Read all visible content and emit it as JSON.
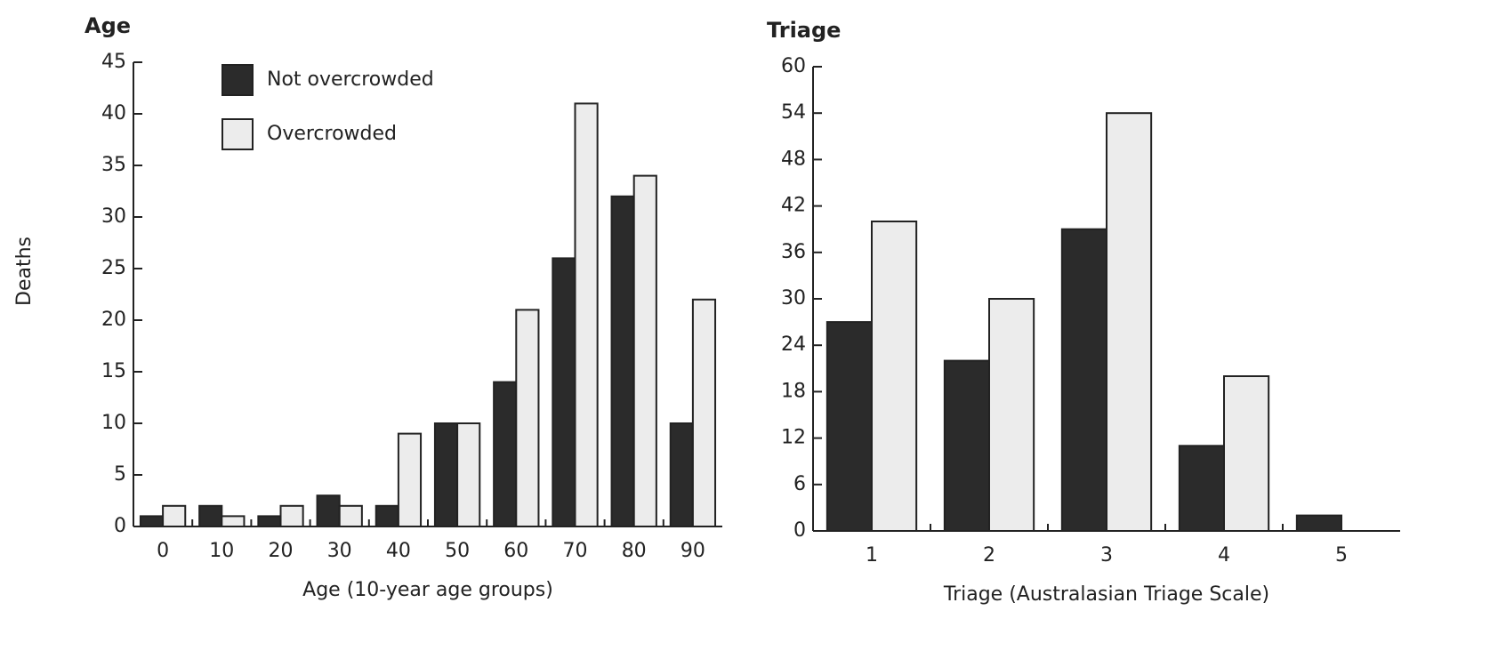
{
  "chart_data": [
    {
      "type": "bar",
      "title": "Age",
      "ylabel": "Deaths",
      "xlabel": "Age (10-year age groups)",
      "categories": [
        "0",
        "10",
        "20",
        "30",
        "40",
        "50",
        "60",
        "70",
        "80",
        "90"
      ],
      "series": [
        {
          "name": "Not overcrowded",
          "color": "#2b2b2b",
          "values": [
            1,
            2,
            1,
            3,
            2,
            10,
            14,
            26,
            32,
            10
          ]
        },
        {
          "name": "Overcrowded",
          "color": "#ececec",
          "values": [
            2,
            1,
            2,
            2,
            9,
            10,
            21,
            41,
            34,
            22
          ]
        }
      ],
      "ylim": [
        0,
        45
      ],
      "yticks": [
        0,
        5,
        10,
        15,
        20,
        25,
        30,
        35,
        40,
        45
      ],
      "legend": "upper left"
    },
    {
      "type": "bar",
      "title": "Triage",
      "xlabel": "Triage (Australasian Triage Scale)",
      "categories": [
        "1",
        "2",
        "3",
        "4",
        "5"
      ],
      "series": [
        {
          "color": "#2b2b2b",
          "values": [
            27,
            22,
            39,
            11,
            2
          ]
        },
        {
          "color": "#ececec",
          "values": [
            40,
            30,
            54,
            20,
            null
          ]
        }
      ],
      "ylim": [
        0,
        60
      ],
      "yticks": [
        0,
        6,
        12,
        18,
        24,
        30,
        36,
        42,
        48,
        54,
        60
      ]
    }
  ]
}
